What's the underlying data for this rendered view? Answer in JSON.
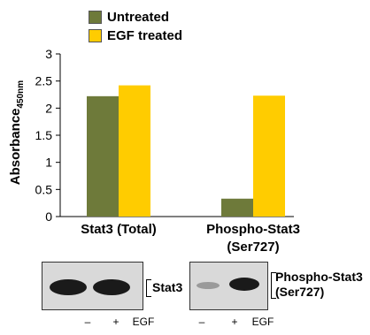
{
  "chart_data": {
    "type": "bar",
    "categories": [
      "Stat3 (Total)",
      "Phospho-Stat3 (Ser727)"
    ],
    "category_labels": [
      [
        "Stat3 (Total)"
      ],
      [
        "Phospho-Stat3",
        "(Ser727)"
      ]
    ],
    "series": [
      {
        "name": "Untreated",
        "values": [
          2.22,
          0.33
        ],
        "color": "#6e7a3a"
      },
      {
        "name": "EGF treated",
        "values": [
          2.42,
          2.23
        ],
        "color": "#ffcc00"
      }
    ],
    "ylabel": "Absorbance",
    "ylabel_subscript": "450nm",
    "ylim": [
      0,
      3
    ],
    "yticks": [
      "0",
      "0.5",
      "1",
      "1.5",
      "2",
      "2.5",
      "3"
    ],
    "grid": false,
    "legend_position": "top"
  },
  "blots": [
    {
      "target": "Stat3",
      "target_lines": [
        "Stat3"
      ],
      "lanes": [
        "–",
        "+"
      ],
      "lane_caption": "EGF",
      "band_intensity": [
        1.0,
        1.0
      ]
    },
    {
      "target": "Phospho-Stat3 (Ser727)",
      "target_lines": [
        "Phospho-Stat3",
        "(Ser727)"
      ],
      "lanes": [
        "–",
        "+"
      ],
      "lane_caption": "EGF",
      "band_intensity": [
        0.15,
        0.95
      ]
    }
  ]
}
